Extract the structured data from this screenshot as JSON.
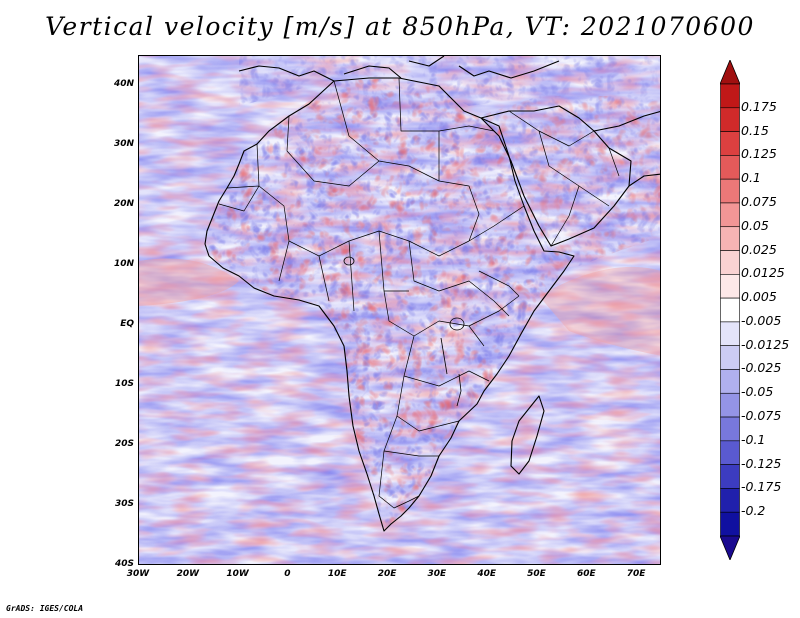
{
  "title": "Vertical velocity [m/s] at 850hPa, VT: 2021070600",
  "credit": "GrADS: IGES/COLA",
  "lat_labels": [
    "40N",
    "30N",
    "20N",
    "10N",
    "EQ",
    "10S",
    "20S",
    "30S",
    "40S"
  ],
  "lat_values": [
    40,
    30,
    20,
    10,
    0,
    -10,
    -20,
    -30,
    -40
  ],
  "lon_labels": [
    "30W",
    "20W",
    "10W",
    "0",
    "10E",
    "20E",
    "30E",
    "40E",
    "50E",
    "60E",
    "70E"
  ],
  "lon_values": [
    -30,
    -20,
    -10,
    0,
    10,
    20,
    30,
    40,
    50,
    60,
    70
  ],
  "map_extent": {
    "lon_min": -30,
    "lon_max": 75,
    "lat_min": -40,
    "lat_max": 45
  },
  "colorbar": {
    "labels": [
      "0.175",
      "0.15",
      "0.125",
      "0.1",
      "0.075",
      "0.05",
      "0.025",
      "0.0125",
      "0.005",
      "-0.005",
      "-0.0125",
      "-0.025",
      "-0.05",
      "-0.075",
      "-0.1",
      "-0.125",
      "-0.175",
      "-0.2"
    ],
    "colors": [
      "#c01818",
      "#d02a2a",
      "#dc4040",
      "#e45a5a",
      "#ec7878",
      "#f29696",
      "#f6b4b4",
      "#fad2d2",
      "#fde8e8",
      "#ffffff",
      "#e4e4fa",
      "#ccccf4",
      "#b0b0ee",
      "#9494e6",
      "#7878dc",
      "#5a5ad0",
      "#3c3cc0",
      "#2020ac",
      "#1010a0"
    ],
    "top_arrow_color": "#a01010",
    "bottom_arrow_color": "#1a0a90"
  }
}
